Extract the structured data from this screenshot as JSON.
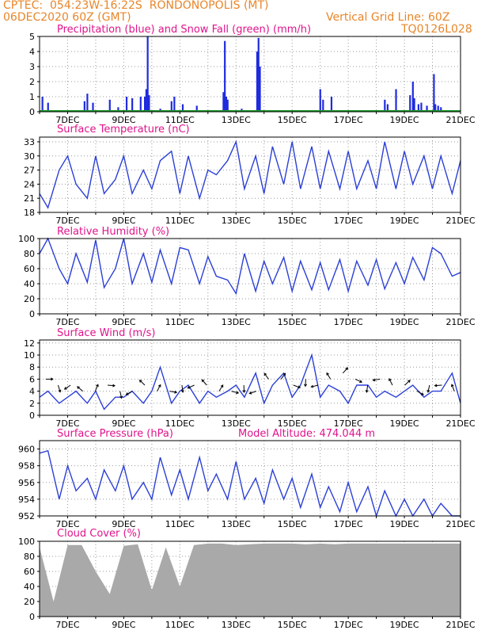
{
  "header": {
    "line1_left": "CPTEC:  054:23W-16:22S  RONDONOPOLIS (MT)",
    "line2_left": "06DEC2020 60Z (GMT)",
    "line2_right": "Vertical Grid Line: 60Z",
    "line3_right": "TQ0126L028"
  },
  "colors": {
    "header": "#e8862a",
    "title": "#e0148c",
    "line": "#2b3fd6",
    "precip_bar": "#1f2bdc",
    "snow": "#1a9a2a",
    "cloud": "#a9a9a9"
  },
  "x_ticks": [
    "7DEC",
    "9DEC",
    "11DEC",
    "13DEC",
    "15DEC",
    "17DEC",
    "19DEC",
    "21DEC"
  ],
  "chart_data": [
    {
      "type": "bar",
      "title": "Precipitation (blue) and Snow Fall (green) (mm/h)",
      "ylim": [
        0,
        5
      ],
      "yticks": [
        0,
        1,
        2,
        3,
        4,
        5
      ],
      "series": [
        {
          "name": "Precipitation",
          "points": [
            [
              0.1,
              1.0
            ],
            [
              0.3,
              0.6
            ],
            [
              1.6,
              0.7
            ],
            [
              1.7,
              1.2
            ],
            [
              1.9,
              0.6
            ],
            [
              2.5,
              0.8
            ],
            [
              2.8,
              0.3
            ],
            [
              3.1,
              1.0
            ],
            [
              3.3,
              0.9
            ],
            [
              3.6,
              1.0
            ],
            [
              3.75,
              1.0
            ],
            [
              3.8,
              1.5
            ],
            [
              3.85,
              5.0
            ],
            [
              3.9,
              1.1
            ],
            [
              4.3,
              0.2
            ],
            [
              4.7,
              0.7
            ],
            [
              4.8,
              1.0
            ],
            [
              5.1,
              0.5
            ],
            [
              5.6,
              0.4
            ],
            [
              6.3,
              0.1
            ],
            [
              6.55,
              1.3
            ],
            [
              6.6,
              4.7
            ],
            [
              6.65,
              1.0
            ],
            [
              6.7,
              0.8
            ],
            [
              7.2,
              0.2
            ],
            [
              7.75,
              4.0
            ],
            [
              7.8,
              4.9
            ],
            [
              7.85,
              3.0
            ],
            [
              10.0,
              1.5
            ],
            [
              10.1,
              0.8
            ],
            [
              10.4,
              1.0
            ],
            [
              12.3,
              0.8
            ],
            [
              12.4,
              0.5
            ],
            [
              12.7,
              1.5
            ],
            [
              13.2,
              1.1
            ],
            [
              13.3,
              2.0
            ],
            [
              13.35,
              0.9
            ],
            [
              13.5,
              0.5
            ],
            [
              13.6,
              0.6
            ],
            [
              13.8,
              0.4
            ],
            [
              14.05,
              2.5
            ],
            [
              14.1,
              0.5
            ],
            [
              14.2,
              0.4
            ],
            [
              14.3,
              0.3
            ]
          ]
        },
        {
          "name": "Snow Fall",
          "points": []
        }
      ]
    },
    {
      "type": "line",
      "title": "Surface Temperature (nC)",
      "ylim": [
        18,
        34
      ],
      "yticks": [
        18,
        21,
        24,
        27,
        30,
        33
      ],
      "x": [
        0.0,
        0.3,
        0.7,
        1.0,
        1.3,
        1.7,
        2.0,
        2.3,
        2.7,
        3.0,
        3.3,
        3.7,
        4.0,
        4.3,
        4.7,
        5.0,
        5.3,
        5.7,
        6.0,
        6.3,
        6.7,
        7.0,
        7.3,
        7.7,
        8.0,
        8.3,
        8.7,
        9.0,
        9.3,
        9.7,
        10.0,
        10.3,
        10.7,
        11.0,
        11.3,
        11.7,
        12.0,
        12.3,
        12.7,
        13.0,
        13.3,
        13.7,
        14.0,
        14.3,
        14.7,
        15.0
      ],
      "values": [
        22,
        19,
        27,
        30,
        24,
        21,
        30,
        22,
        25,
        30,
        22,
        27,
        23,
        29,
        31,
        22,
        30,
        21,
        27,
        26,
        29,
        33,
        23,
        30,
        22,
        32,
        24,
        33,
        23,
        32,
        23,
        31,
        23,
        31,
        23,
        29,
        23,
        33,
        23,
        31,
        24,
        30,
        23,
        30,
        22,
        29
      ]
    },
    {
      "type": "line",
      "title": "Relative Humidity (%)",
      "ylim": [
        0,
        100
      ],
      "yticks": [
        0,
        20,
        40,
        60,
        80,
        100
      ],
      "x": [
        0.0,
        0.3,
        0.7,
        1.0,
        1.3,
        1.7,
        2.0,
        2.3,
        2.7,
        3.0,
        3.3,
        3.7,
        4.0,
        4.3,
        4.7,
        5.0,
        5.3,
        5.7,
        6.0,
        6.3,
        6.7,
        7.0,
        7.3,
        7.7,
        8.0,
        8.3,
        8.7,
        9.0,
        9.3,
        9.7,
        10.0,
        10.3,
        10.7,
        11.0,
        11.3,
        11.7,
        12.0,
        12.3,
        12.7,
        13.0,
        13.3,
        13.7,
        14.0,
        14.3,
        14.7,
        15.0
      ],
      "values": [
        80,
        100,
        60,
        40,
        80,
        42,
        98,
        35,
        60,
        100,
        40,
        80,
        42,
        85,
        40,
        88,
        85,
        40,
        76,
        50,
        45,
        27,
        80,
        30,
        70,
        40,
        75,
        30,
        70,
        32,
        68,
        32,
        72,
        30,
        70,
        38,
        72,
        33,
        68,
        40,
        75,
        45,
        88,
        80,
        50,
        55
      ]
    },
    {
      "type": "line",
      "title": "Surface Wind (m/s)",
      "ylim": [
        0,
        12.5
      ],
      "yticks": [
        0,
        2,
        4,
        6,
        8,
        10,
        12
      ],
      "x": [
        0.0,
        0.3,
        0.7,
        1.0,
        1.3,
        1.7,
        2.0,
        2.3,
        2.7,
        3.0,
        3.3,
        3.7,
        4.0,
        4.3,
        4.7,
        5.0,
        5.3,
        5.7,
        6.0,
        6.3,
        6.7,
        7.0,
        7.3,
        7.7,
        8.0,
        8.3,
        8.7,
        9.0,
        9.3,
        9.7,
        10.0,
        10.3,
        10.7,
        11.0,
        11.3,
        11.7,
        12.0,
        12.3,
        12.7,
        13.0,
        13.3,
        13.7,
        14.0,
        14.3,
        14.7,
        15.0
      ],
      "values": [
        3,
        4,
        2,
        3,
        4,
        2,
        4,
        1,
        3,
        3,
        4,
        2,
        4,
        8,
        2,
        4,
        5,
        2,
        4,
        3,
        4,
        5,
        3,
        7,
        2,
        5,
        7,
        3,
        5,
        10,
        3,
        5,
        4,
        2,
        5,
        5,
        3,
        4,
        3,
        4,
        5,
        3,
        4,
        4,
        7,
        2
      ],
      "arrow_speeds": [
        6,
        5,
        5,
        4,
        4,
        5,
        4,
        4,
        5,
        4,
        4,
        5,
        5,
        5,
        4,
        4,
        5,
        4,
        6,
        6,
        5,
        6,
        5,
        6,
        7,
        6,
        5,
        6,
        5,
        5,
        4,
        5,
        5,
        4
      ]
    },
    {
      "type": "line",
      "title": "Surface Pressure (hPa)",
      "annotation": "Model Altitude: 474.044 m",
      "ylim": [
        952,
        961
      ],
      "yticks": [
        952,
        954,
        956,
        958,
        960
      ],
      "x": [
        0.0,
        0.3,
        0.7,
        1.0,
        1.3,
        1.7,
        2.0,
        2.3,
        2.7,
        3.0,
        3.3,
        3.7,
        4.0,
        4.3,
        4.7,
        5.0,
        5.3,
        5.7,
        6.0,
        6.3,
        6.7,
        7.0,
        7.3,
        7.7,
        8.0,
        8.3,
        8.7,
        9.0,
        9.3,
        9.7,
        10.0,
        10.3,
        10.7,
        11.0,
        11.3,
        11.7,
        12.0,
        12.3,
        12.7,
        13.0,
        13.3,
        13.7,
        14.0,
        14.3,
        14.7,
        15.0
      ],
      "values": [
        959.5,
        959.8,
        954,
        958,
        955,
        956.5,
        954,
        957.5,
        955,
        958,
        954,
        956,
        954,
        959,
        954.5,
        957.5,
        954,
        959,
        955,
        957,
        954,
        958.5,
        954,
        956.5,
        953.5,
        957.5,
        954,
        956.5,
        953,
        957,
        953,
        955.5,
        952.5,
        956,
        952.5,
        955.5,
        952,
        955,
        952,
        954,
        951.5,
        954,
        951.5,
        953.5,
        951,
        952
      ]
    },
    {
      "type": "area",
      "title": "Cloud Cover (%)",
      "ylim": [
        0,
        100
      ],
      "yticks": [
        0,
        20,
        40,
        60,
        80,
        100
      ],
      "x": [
        0.0,
        0.5,
        1.0,
        1.5,
        2.0,
        2.5,
        3.0,
        3.5,
        4.0,
        4.5,
        5.0,
        5.5,
        6.0,
        6.5,
        7.0,
        7.5,
        8.0,
        8.5,
        9.0,
        9.5,
        10.0,
        10.5,
        11.0,
        11.5,
        12.0,
        12.5,
        13.0,
        13.5,
        14.0,
        14.5,
        15.0
      ],
      "values": [
        92,
        20,
        95,
        95,
        60,
        30,
        94,
        96,
        35,
        92,
        40,
        95,
        97,
        97,
        95,
        96,
        97,
        97,
        97,
        96,
        97,
        96,
        97,
        97,
        97,
        97,
        97,
        97,
        97,
        97,
        97
      ]
    }
  ]
}
